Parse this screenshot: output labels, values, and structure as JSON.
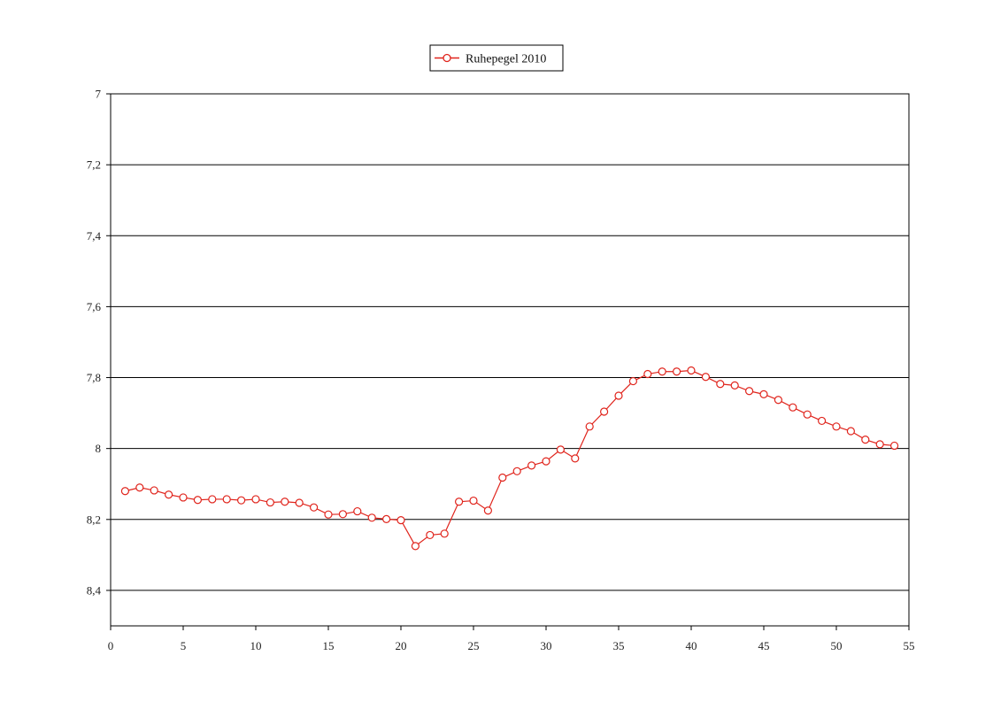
{
  "chart_data": {
    "type": "line",
    "title": "",
    "xlabel": "",
    "ylabel": "",
    "xlim": [
      0,
      55
    ],
    "ylim": [
      8.5,
      7.0
    ],
    "y_inverted": true,
    "x_ticks": [
      0,
      5,
      10,
      15,
      20,
      25,
      30,
      35,
      40,
      45,
      50,
      55
    ],
    "y_tick_labels": [
      "7",
      "7,2",
      "7,4",
      "7,6",
      "7,8",
      "8",
      "8,2",
      "8,4"
    ],
    "y_tick_values": [
      7.0,
      7.2,
      7.4,
      7.6,
      7.8,
      8.0,
      8.2,
      8.4
    ],
    "grid": "horizontal",
    "legend": "top-center",
    "series": [
      {
        "name": "Ruhepegel 2010",
        "color": "#e0241c",
        "marker": "open-circle",
        "x": [
          1,
          2,
          3,
          4,
          5,
          6,
          7,
          8,
          9,
          10,
          11,
          12,
          13,
          14,
          15,
          16,
          17,
          18,
          19,
          20,
          21,
          22,
          23,
          24,
          25,
          26,
          27,
          28,
          29,
          30,
          31,
          32,
          33,
          34,
          35,
          36,
          37,
          38,
          39,
          40,
          41,
          42,
          43,
          44,
          45,
          46,
          47,
          48,
          49,
          50,
          51,
          52,
          53,
          54
        ],
        "y": [
          8.12,
          8.11,
          8.118,
          8.13,
          8.138,
          8.145,
          8.143,
          8.143,
          8.146,
          8.143,
          8.152,
          8.15,
          8.153,
          8.166,
          8.186,
          8.185,
          8.177,
          8.195,
          8.199,
          8.202,
          8.275,
          8.244,
          8.24,
          8.15,
          8.147,
          8.175,
          8.082,
          8.064,
          8.048,
          8.036,
          8.003,
          8.028,
          7.938,
          7.896,
          7.851,
          7.81,
          7.79,
          7.783,
          7.783,
          7.78,
          7.798,
          7.818,
          7.822,
          7.838,
          7.847,
          7.863,
          7.884,
          7.904,
          7.922,
          7.938,
          7.951,
          7.975,
          7.988,
          7.992
        ]
      }
    ]
  }
}
